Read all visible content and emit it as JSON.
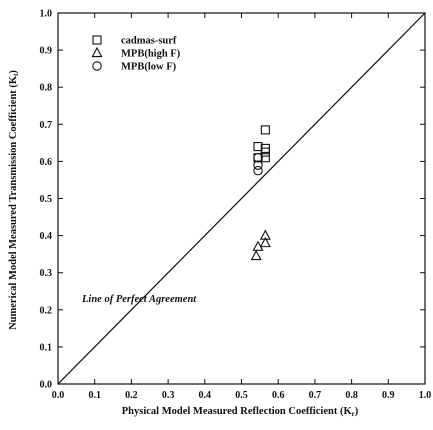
{
  "chart_data": {
    "type": "scatter",
    "xlabel": "Physical Model Measured Reflection Coefficient (K",
    "xlabel_sub": "r",
    "ylabel": "Numerical Model Measured Transmission Coefficient (K",
    "ylabel_sub": "t",
    "xlim": [
      0.0,
      1.0
    ],
    "ylim": [
      0.0,
      1.0
    ],
    "x_ticks": [
      "0.0",
      "0.1",
      "0.2",
      "0.3",
      "0.4",
      "0.5",
      "0.6",
      "0.7",
      "0.8",
      "0.9",
      "1.0"
    ],
    "y_ticks": [
      "0.0",
      "0.1",
      "0.2",
      "0.3",
      "0.4",
      "0.5",
      "0.6",
      "0.7",
      "0.8",
      "0.9",
      "1.0"
    ],
    "grid": false,
    "legend_position": "top-left",
    "annotation": "Line of Perfect Agreement",
    "reference_line": {
      "x": [
        0.0,
        1.0
      ],
      "y": [
        0.0,
        1.0
      ]
    },
    "series": [
      {
        "name": "cadmas-surf",
        "marker": "square",
        "points": [
          [
            0.565,
            0.685
          ],
          [
            0.545,
            0.64
          ],
          [
            0.565,
            0.635
          ],
          [
            0.565,
            0.625
          ],
          [
            0.545,
            0.61
          ],
          [
            0.565,
            0.61
          ]
        ]
      },
      {
        "name": "MPB(high F)",
        "marker": "triangle",
        "points": [
          [
            0.565,
            0.4
          ],
          [
            0.565,
            0.38
          ],
          [
            0.545,
            0.37
          ],
          [
            0.54,
            0.345
          ]
        ]
      },
      {
        "name": "MPB(low F)",
        "marker": "circle",
        "points": [
          [
            0.545,
            0.61
          ],
          [
            0.545,
            0.59
          ],
          [
            0.545,
            0.575
          ]
        ]
      }
    ]
  }
}
